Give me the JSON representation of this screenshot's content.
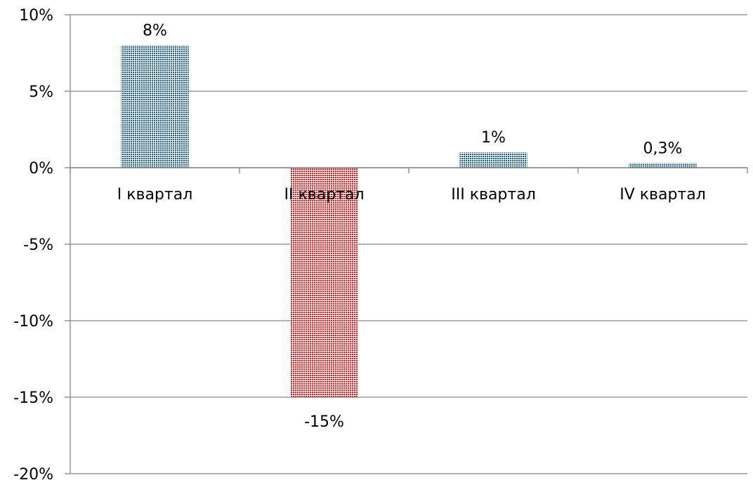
{
  "chart_data": {
    "type": "bar",
    "categories": [
      "I квартал",
      "II квартал",
      "III квартал",
      "IV квартал"
    ],
    "values": [
      8,
      -15,
      1,
      0.3
    ],
    "data_labels": [
      "8%",
      "-15%",
      "1%",
      "0,3%"
    ],
    "ylim": [
      -20,
      10
    ],
    "yticks": [
      10,
      5,
      0,
      -5,
      -10,
      -15,
      -20
    ],
    "ytick_labels": [
      "10%",
      "5%",
      "0%",
      "-5%",
      "-10%",
      "-15%",
      "-20%"
    ],
    "grid": true,
    "legend": "none",
    "colors": {
      "positive": "#1f5a96",
      "negative": "#e0161b",
      "grid": "#868686"
    },
    "bar_style": "dotted"
  }
}
